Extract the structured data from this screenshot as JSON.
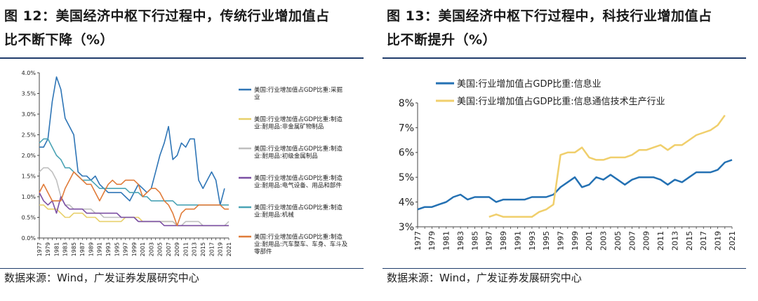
{
  "left": {
    "title_line1": "图 12：美国经济中枢下行过程中，传统行业增加值占",
    "title_line2": "比不断下降（%）",
    "source": "数据来源：Wind，广发证券发展研究中心"
  },
  "right": {
    "title_line1": "图 13：美国经济中枢下行过程中，科技行业增加值占",
    "title_line2": "比不断提升（%）",
    "source": "数据来源：Wind，广发证券发展研究中心"
  },
  "chart_data": [
    {
      "type": "line",
      "id": "chart12",
      "title": "美国经济中枢下行过程中，传统行业增加值占比不断下降（%）",
      "x": [
        1977,
        1978,
        1979,
        1980,
        1981,
        1982,
        1983,
        1984,
        1985,
        1986,
        1987,
        1988,
        1989,
        1990,
        1991,
        1992,
        1993,
        1994,
        1995,
        1996,
        1997,
        1998,
        1999,
        2000,
        2001,
        2002,
        2003,
        2004,
        2005,
        2006,
        2007,
        2008,
        2009,
        2010,
        2011,
        2012,
        2013,
        2014,
        2015,
        2016,
        2017,
        2018,
        2019,
        2020,
        2021
      ],
      "x_tick_labels": [
        "1977",
        "1979",
        "1981",
        "1983",
        "1985",
        "1987",
        "1989",
        "1991",
        "1993",
        "1995",
        "1997",
        "1999",
        "2001",
        "2003",
        "2005",
        "2007",
        "2009",
        "2011",
        "2013",
        "2015",
        "2017",
        "2019",
        "2021"
      ],
      "ylim": [
        0,
        4.0
      ],
      "y_tick_labels": [
        "0.0%",
        "0.5%",
        "1.0%",
        "1.5%",
        "2.0%",
        "2.5%",
        "3.0%",
        "3.5%",
        "4.0%"
      ],
      "series": [
        {
          "name": "美国:行业增加值占GDP比重:采掘业",
          "color": "#2e75b6",
          "values": [
            2.2,
            2.2,
            2.4,
            3.3,
            3.9,
            3.6,
            2.9,
            2.7,
            2.5,
            1.6,
            1.5,
            1.5,
            1.4,
            1.5,
            1.3,
            1.2,
            1.1,
            1.1,
            1.1,
            1.1,
            1.0,
            0.9,
            1.1,
            1.3,
            1.2,
            1.1,
            1.2,
            1.6,
            2.0,
            2.3,
            2.7,
            1.9,
            2.0,
            2.3,
            2.2,
            2.4,
            2.4,
            1.4,
            1.2,
            1.4,
            1.6,
            1.4,
            0.8,
            1.2,
            null
          ]
        },
        {
          "name": "美国:行业增加值占GDP比重:制造业:耐用品:非金属矿物制品",
          "color": "#e8d06a",
          "values": [
            0.8,
            0.8,
            0.7,
            0.7,
            0.7,
            0.6,
            0.5,
            0.5,
            0.6,
            0.6,
            0.6,
            0.5,
            0.5,
            0.5,
            0.4,
            0.4,
            0.4,
            0.4,
            0.4,
            0.4,
            0.5,
            0.5,
            0.5,
            0.5,
            0.4,
            0.4,
            0.4,
            0.4,
            0.4,
            0.4,
            0.4,
            0.4,
            0.3,
            0.3,
            0.3,
            0.3,
            0.3,
            0.3,
            0.3,
            0.3,
            0.3,
            0.3,
            0.3,
            0.3,
            0.3
          ]
        },
        {
          "name": "美国:行业增加值占GDP比重:制造业:耐用品:初级金属制品",
          "color": "#bfbfbf",
          "values": [
            1.6,
            1.7,
            1.7,
            1.6,
            1.4,
            1.0,
            0.8,
            0.8,
            0.7,
            0.7,
            0.7,
            0.7,
            0.7,
            0.6,
            0.6,
            0.5,
            0.5,
            0.5,
            0.5,
            0.5,
            0.5,
            0.5,
            0.5,
            0.4,
            0.4,
            0.4,
            0.4,
            0.4,
            0.4,
            0.4,
            0.4,
            0.4,
            0.3,
            0.3,
            0.4,
            0.4,
            0.4,
            0.4,
            0.3,
            0.3,
            0.3,
            0.3,
            0.3,
            0.3,
            0.4
          ]
        },
        {
          "name": "美国:行业增加值占GDP比重:制造业:耐用品:电气设备、用品和部件",
          "color": "#7b4fa3",
          "values": [
            1.1,
            0.9,
            0.8,
            0.9,
            0.6,
            1.0,
            0.8,
            0.7,
            0.7,
            0.7,
            0.7,
            0.6,
            0.6,
            0.6,
            0.6,
            0.6,
            0.6,
            0.6,
            0.6,
            0.5,
            0.5,
            0.5,
            0.5,
            0.4,
            0.4,
            0.4,
            0.4,
            0.4,
            0.4,
            0.3,
            0.3,
            0.3,
            0.3,
            0.3,
            0.3,
            0.3,
            0.3,
            0.3,
            0.3,
            0.3,
            0.3,
            0.3,
            0.3,
            0.3,
            0.3
          ]
        },
        {
          "name": "美国:行业增加值占GDP比重:制造业:耐用品:机械",
          "color": "#4aa3b5",
          "values": [
            2.3,
            2.4,
            2.4,
            2.2,
            2.0,
            1.9,
            1.7,
            1.7,
            1.6,
            1.5,
            1.4,
            1.4,
            1.4,
            1.3,
            1.2,
            1.2,
            1.2,
            1.2,
            1.2,
            1.2,
            1.2,
            1.1,
            1.1,
            1.1,
            1.0,
            1.0,
            0.9,
            0.9,
            0.9,
            0.9,
            0.9,
            0.9,
            0.8,
            0.8,
            0.8,
            0.8,
            0.8,
            0.8,
            0.8,
            0.8,
            0.8,
            0.8,
            0.8,
            0.8,
            0.8
          ]
        },
        {
          "name": "美国:行业增加值占GDP比重:制造业:耐用品:汽车整车、车身、车斗及零部件",
          "color": "#e07b39",
          "values": [
            1.1,
            1.3,
            1.1,
            0.9,
            0.9,
            0.9,
            1.2,
            1.4,
            1.6,
            1.5,
            1.4,
            1.3,
            1.3,
            1.1,
            0.9,
            1.1,
            1.3,
            1.4,
            1.3,
            1.3,
            1.4,
            1.4,
            1.4,
            1.3,
            1.0,
            1.1,
            1.2,
            1.2,
            1.1,
            0.9,
            0.8,
            0.6,
            0.3,
            0.6,
            0.7,
            0.7,
            0.7,
            0.8,
            0.8,
            0.8,
            0.8,
            0.8,
            0.8,
            0.7,
            0.7
          ]
        }
      ],
      "legend": "right"
    },
    {
      "type": "line",
      "id": "chart13",
      "title": "美国经济中枢下行过程中，科技行业增加值占比不断提升（%）",
      "x": [
        1977,
        1978,
        1979,
        1980,
        1981,
        1982,
        1983,
        1984,
        1985,
        1986,
        1987,
        1988,
        1989,
        1990,
        1991,
        1992,
        1993,
        1994,
        1995,
        1996,
        1997,
        1998,
        1999,
        2000,
        2001,
        2002,
        2003,
        2004,
        2005,
        2006,
        2007,
        2008,
        2009,
        2010,
        2011,
        2012,
        2013,
        2014,
        2015,
        2016,
        2017,
        2018,
        2019,
        2020,
        2021
      ],
      "x_tick_labels": [
        "1977",
        "1979",
        "1981",
        "1983",
        "1985",
        "1987",
        "1989",
        "1991",
        "1993",
        "1995",
        "1997",
        "1999",
        "2001",
        "2003",
        "2005",
        "2007",
        "2009",
        "2011",
        "2013",
        "2015",
        "2017",
        "2019",
        "2021"
      ],
      "ylim": [
        3,
        8
      ],
      "y_tick_labels": [
        "3%",
        "4%",
        "5%",
        "6%",
        "7%",
        "8%"
      ],
      "series": [
        {
          "name": "美国:行业增加值占GDP比重:信息业",
          "color": "#2471b3",
          "values": [
            3.7,
            3.8,
            3.8,
            3.9,
            4.0,
            4.2,
            4.3,
            4.1,
            4.2,
            4.2,
            4.2,
            4.0,
            4.1,
            4.1,
            4.1,
            4.1,
            4.2,
            4.2,
            4.2,
            4.3,
            4.6,
            4.8,
            5.0,
            4.6,
            4.7,
            5.0,
            4.9,
            5.1,
            4.9,
            4.7,
            4.9,
            5.0,
            5.0,
            5.0,
            4.9,
            4.7,
            4.9,
            4.8,
            5.0,
            5.2,
            5.2,
            5.2,
            5.3,
            5.6,
            5.7
          ]
        },
        {
          "name": "美国:行业增加值占GDP比重:信息通信技术生产行业",
          "color": "#f0cf6c",
          "values": [
            null,
            null,
            null,
            null,
            null,
            null,
            null,
            null,
            null,
            null,
            3.4,
            3.5,
            3.4,
            3.4,
            3.4,
            3.4,
            3.4,
            3.6,
            3.7,
            3.9,
            5.9,
            6.0,
            6.0,
            6.2,
            5.8,
            5.7,
            5.7,
            5.8,
            5.8,
            5.8,
            5.9,
            6.1,
            6.1,
            6.2,
            6.3,
            6.1,
            6.3,
            6.3,
            6.5,
            6.7,
            6.8,
            6.9,
            7.1,
            7.5,
            null
          ]
        }
      ],
      "legend": "top"
    }
  ]
}
